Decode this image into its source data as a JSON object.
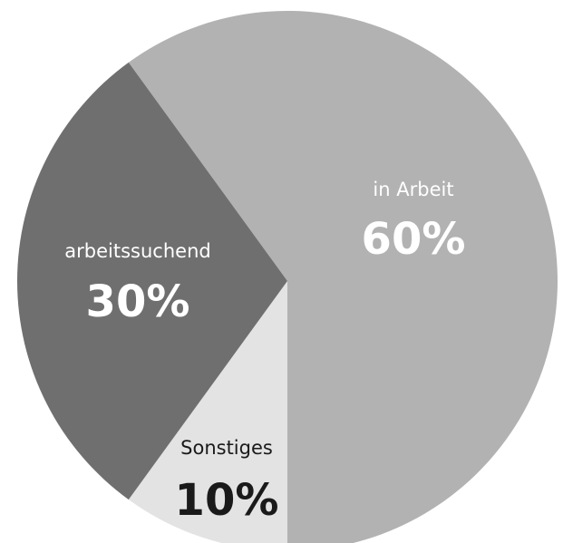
{
  "chart_data": {
    "type": "pie",
    "slices": [
      {
        "label": "in Arbeit",
        "value": 60,
        "value_label": "60%",
        "color": "#b2b2b2",
        "text_color": "#ffffff"
      },
      {
        "label": "Sonstiges",
        "value": 10,
        "value_label": "10%",
        "color": "#e3e3e3",
        "text_color": "#1a1a1a"
      },
      {
        "label": "arbeitssuchend",
        "value": 30,
        "value_label": "30%",
        "color": "#6f6f6f",
        "text_color": "#ffffff"
      }
    ],
    "title": "",
    "legend": "none"
  }
}
